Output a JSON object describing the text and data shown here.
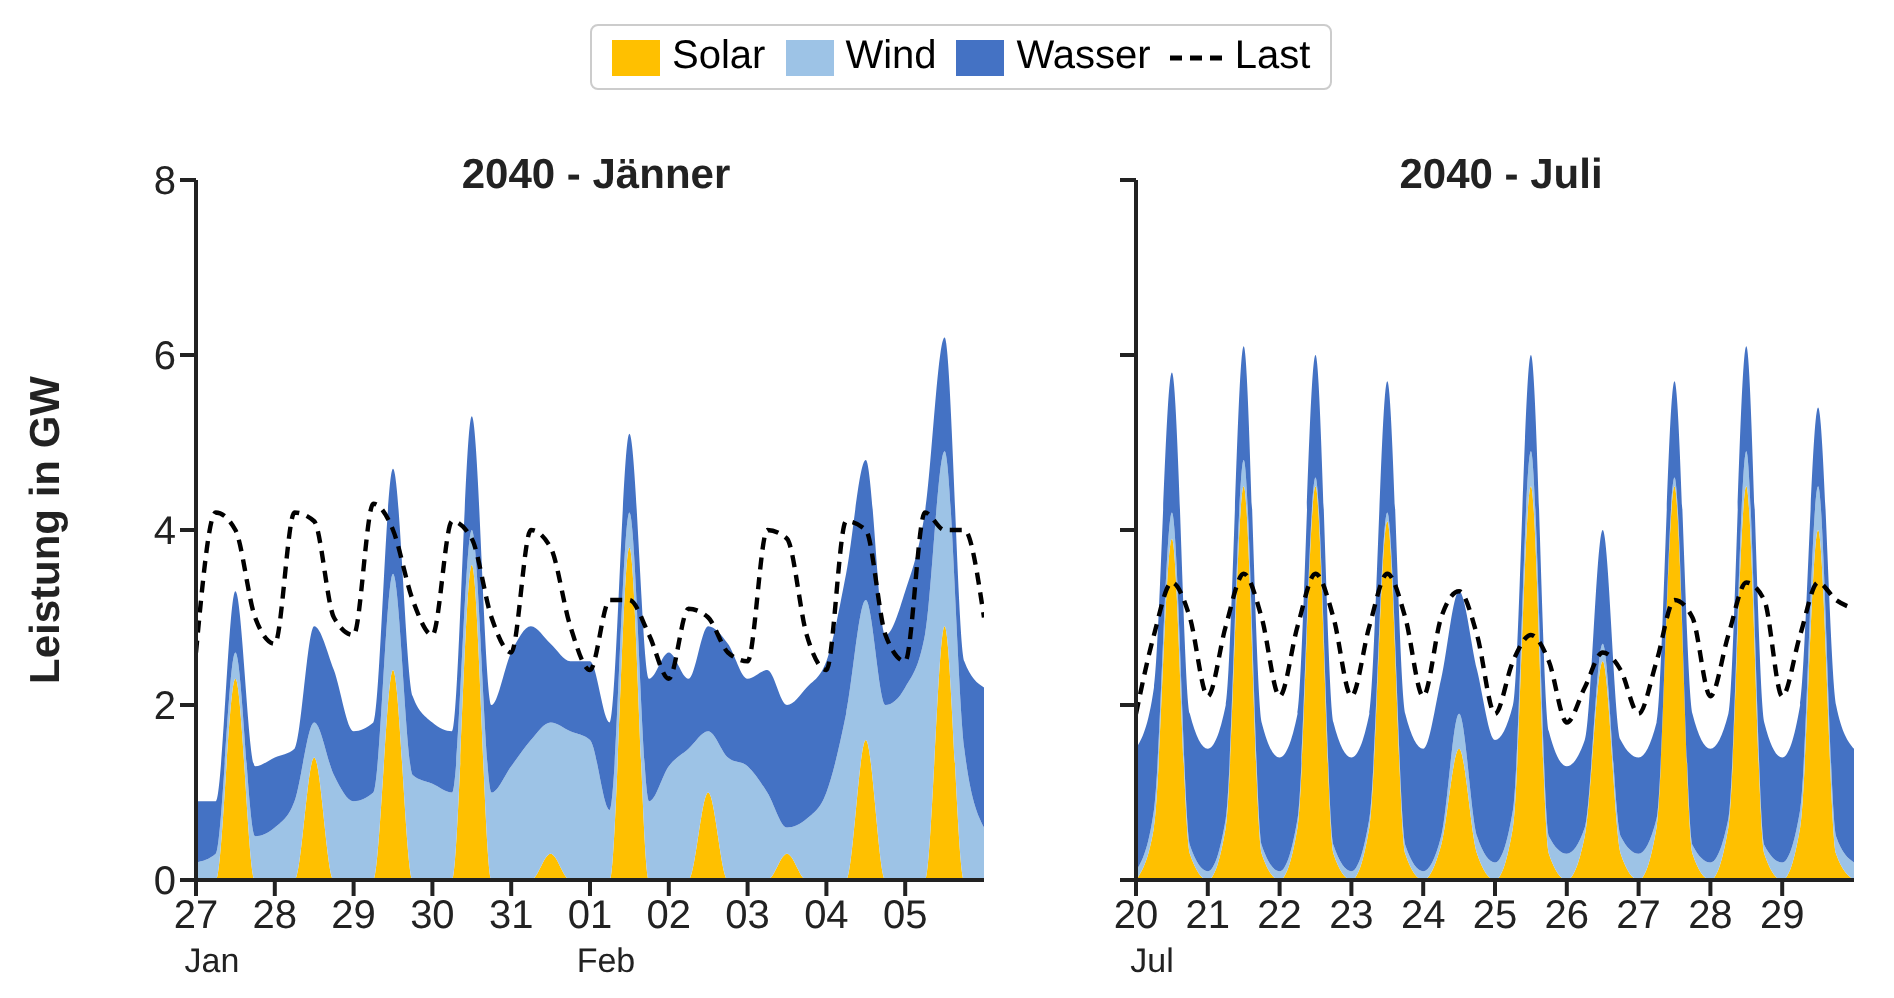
{
  "chart_data": [
    {
      "type": "area",
      "title": "2040 - Jänner",
      "ylabel": "Leistung in GW",
      "stacked": true,
      "legend": "top",
      "ylim": [
        0,
        8
      ],
      "yticks": [
        0,
        2,
        4,
        6,
        8
      ],
      "xlim": [
        "2040-01-27T00:00",
        "2040-02-06T00:00"
      ],
      "xticks": [
        {
          "value": "2040-01-27T00:00",
          "label": "27\nJan"
        },
        {
          "value": "2040-01-28T00:00",
          "label": "28"
        },
        {
          "value": "2040-01-29T00:00",
          "label": "29"
        },
        {
          "value": "2040-01-30T00:00",
          "label": "30"
        },
        {
          "value": "2040-01-31T00:00",
          "label": "31"
        },
        {
          "value": "2040-02-01T00:00",
          "label": "01\nFeb"
        },
        {
          "value": "2040-02-02T00:00",
          "label": "02"
        },
        {
          "value": "2040-02-03T00:00",
          "label": "03"
        },
        {
          "value": "2040-02-04T00:00",
          "label": "04"
        },
        {
          "value": "2040-02-05T00:00",
          "label": "05"
        }
      ],
      "x": [
        "2040-01-27T00:00",
        "2040-01-27T06:00",
        "2040-01-27T12:00",
        "2040-01-27T18:00",
        "2040-01-28T00:00",
        "2040-01-28T06:00",
        "2040-01-28T12:00",
        "2040-01-28T18:00",
        "2040-01-29T00:00",
        "2040-01-29T06:00",
        "2040-01-29T12:00",
        "2040-01-29T18:00",
        "2040-01-30T00:00",
        "2040-01-30T06:00",
        "2040-01-30T12:00",
        "2040-01-30T18:00",
        "2040-01-31T00:00",
        "2040-01-31T06:00",
        "2040-01-31T12:00",
        "2040-01-31T18:00",
        "2040-02-01T00:00",
        "2040-02-01T06:00",
        "2040-02-01T12:00",
        "2040-02-01T18:00",
        "2040-02-02T00:00",
        "2040-02-02T06:00",
        "2040-02-02T12:00",
        "2040-02-02T18:00",
        "2040-02-03T00:00",
        "2040-02-03T06:00",
        "2040-02-03T12:00",
        "2040-02-03T18:00",
        "2040-02-04T00:00",
        "2040-02-04T06:00",
        "2040-02-04T12:00",
        "2040-02-04T18:00",
        "2040-02-05T00:00",
        "2040-02-05T06:00",
        "2040-02-05T12:00",
        "2040-02-05T18:00",
        "2040-02-06T00:00"
      ],
      "series": [
        {
          "name": "Solar",
          "type": "area",
          "color": "#ffc000",
          "values": [
            0,
            0,
            2.3,
            0,
            0,
            0,
            1.4,
            0,
            0,
            0,
            2.4,
            0,
            0,
            0,
            3.6,
            0,
            0,
            0,
            0.3,
            0,
            0,
            0,
            3.8,
            0,
            0,
            0,
            1.0,
            0,
            0,
            0,
            0.3,
            0,
            0,
            0,
            1.6,
            0,
            0,
            0,
            2.9,
            0,
            0
          ]
        },
        {
          "name": "Wind",
          "type": "area",
          "color": "#9dc3e6",
          "values": [
            0.2,
            0.3,
            0.3,
            0.5,
            0.6,
            0.9,
            0.4,
            1.2,
            0.9,
            1.0,
            1.1,
            1.2,
            1.1,
            1.0,
            0.4,
            1.0,
            1.3,
            1.6,
            1.5,
            1.7,
            1.6,
            0.8,
            0.4,
            0.9,
            1.3,
            1.5,
            0.7,
            1.4,
            1.3,
            1.0,
            0.3,
            0.7,
            1.0,
            1.9,
            1.6,
            2.0,
            2.2,
            2.8,
            2.0,
            1.5,
            0.6
          ]
        },
        {
          "name": "Wasser",
          "type": "area",
          "color": "#4472c4",
          "values": [
            0.7,
            0.6,
            0.7,
            0.8,
            0.8,
            0.6,
            1.1,
            1.2,
            0.8,
            0.8,
            1.2,
            0.9,
            0.7,
            0.7,
            1.3,
            1.0,
            1.3,
            1.3,
            0.9,
            0.8,
            0.9,
            1.0,
            0.9,
            1.4,
            1.3,
            0.8,
            1.2,
            1.3,
            1.0,
            1.4,
            1.4,
            1.5,
            1.5,
            1.6,
            1.6,
            0.8,
            1.1,
            1.4,
            1.3,
            1.0,
            1.6
          ]
        },
        {
          "name": "Last",
          "type": "line",
          "color": "#000000",
          "line_style": "dashed",
          "values": [
            2.6,
            4.2,
            4.0,
            3.0,
            2.7,
            4.2,
            4.1,
            3.0,
            2.8,
            4.3,
            4.0,
            3.2,
            2.8,
            4.1,
            3.9,
            3.0,
            2.6,
            4.0,
            3.8,
            2.9,
            2.4,
            3.2,
            3.2,
            2.8,
            2.3,
            3.1,
            3.0,
            2.6,
            2.5,
            4.0,
            3.9,
            2.8,
            2.4,
            4.1,
            4.0,
            2.8,
            2.5,
            4.2,
            4.0,
            4.0,
            3.0
          ]
        }
      ]
    },
    {
      "type": "area",
      "title": "2040 - Juli",
      "stacked": true,
      "tick_labels": "x",
      "ylim": [
        0,
        8
      ],
      "yticks": [
        0,
        2,
        4,
        6,
        8
      ],
      "xlim": [
        "2040-07-20T00:00",
        "2040-07-30T00:00"
      ],
      "xticks": [
        {
          "value": "2040-07-20T00:00",
          "label": "20\nJul"
        },
        {
          "value": "2040-07-21T00:00",
          "label": "21"
        },
        {
          "value": "2040-07-22T00:00",
          "label": "22"
        },
        {
          "value": "2040-07-23T00:00",
          "label": "23"
        },
        {
          "value": "2040-07-24T00:00",
          "label": "24"
        },
        {
          "value": "2040-07-25T00:00",
          "label": "25"
        },
        {
          "value": "2040-07-26T00:00",
          "label": "26"
        },
        {
          "value": "2040-07-27T00:00",
          "label": "27"
        },
        {
          "value": "2040-07-28T00:00",
          "label": "28"
        },
        {
          "value": "2040-07-29T00:00",
          "label": "29"
        }
      ],
      "x": [
        "2040-07-20T00:00",
        "2040-07-20T06:00",
        "2040-07-20T12:00",
        "2040-07-20T18:00",
        "2040-07-21T00:00",
        "2040-07-21T06:00",
        "2040-07-21T12:00",
        "2040-07-21T18:00",
        "2040-07-22T00:00",
        "2040-07-22T06:00",
        "2040-07-22T12:00",
        "2040-07-22T18:00",
        "2040-07-23T00:00",
        "2040-07-23T06:00",
        "2040-07-23T12:00",
        "2040-07-23T18:00",
        "2040-07-24T00:00",
        "2040-07-24T06:00",
        "2040-07-24T12:00",
        "2040-07-24T18:00",
        "2040-07-25T00:00",
        "2040-07-25T06:00",
        "2040-07-25T12:00",
        "2040-07-25T18:00",
        "2040-07-26T00:00",
        "2040-07-26T06:00",
        "2040-07-26T12:00",
        "2040-07-26T18:00",
        "2040-07-27T00:00",
        "2040-07-27T06:00",
        "2040-07-27T12:00",
        "2040-07-27T18:00",
        "2040-07-28T00:00",
        "2040-07-28T06:00",
        "2040-07-28T12:00",
        "2040-07-28T18:00",
        "2040-07-29T00:00",
        "2040-07-29T06:00",
        "2040-07-29T12:00",
        "2040-07-29T18:00",
        "2040-07-30T00:00"
      ],
      "series": [
        {
          "type": "area",
          "color": "#ffc000",
          "values": [
            0,
            0.6,
            3.9,
            0.3,
            0,
            0.6,
            4.5,
            0.3,
            0,
            0.6,
            4.5,
            0.3,
            0,
            0.6,
            4.1,
            0.3,
            0,
            0.4,
            1.5,
            0.3,
            0,
            0.6,
            4.5,
            0.3,
            0,
            0.5,
            2.5,
            0.3,
            0,
            0.6,
            4.5,
            0.3,
            0,
            0.6,
            4.5,
            0.3,
            0,
            0.6,
            4.0,
            0.3,
            0
          ]
        },
        {
          "type": "area",
          "color": "#9dc3e6",
          "values": [
            0.1,
            0.2,
            0.3,
            0.1,
            0.1,
            0.1,
            0.3,
            0.1,
            0.1,
            0.1,
            0.1,
            0.1,
            0.1,
            0.1,
            0.1,
            0.1,
            0.1,
            0.1,
            0.4,
            0.2,
            0.2,
            0.2,
            0.4,
            0.2,
            0.3,
            0.1,
            0.2,
            0.2,
            0.3,
            0.1,
            0.1,
            0.1,
            0.2,
            0.1,
            0.4,
            0.1,
            0.2,
            0.2,
            0.5,
            0.2,
            0.2
          ]
        },
        {
          "type": "area",
          "color": "#4472c4",
          "values": [
            1.4,
            1.4,
            1.6,
            1.5,
            1.4,
            1.3,
            1.3,
            1.4,
            1.3,
            1.2,
            1.4,
            1.4,
            1.3,
            1.2,
            1.5,
            1.5,
            1.4,
            1.8,
            1.4,
            1.9,
            1.4,
            1.2,
            1.1,
            1.2,
            1.0,
            1.0,
            1.3,
            1.1,
            1.1,
            1.1,
            1.1,
            1.5,
            1.3,
            1.2,
            1.2,
            1.4,
            1.2,
            1.2,
            0.9,
            1.5,
            1.3
          ]
        },
        {
          "type": "line",
          "color": "#000000",
          "line_style": "dashed",
          "values": [
            1.9,
            2.8,
            3.4,
            3.0,
            2.1,
            2.9,
            3.5,
            3.0,
            2.1,
            2.9,
            3.5,
            3.0,
            2.1,
            2.9,
            3.5,
            3.0,
            2.1,
            3.0,
            3.3,
            2.8,
            1.9,
            2.5,
            2.8,
            2.5,
            1.8,
            2.2,
            2.6,
            2.4,
            1.9,
            2.5,
            3.2,
            3.0,
            2.1,
            2.8,
            3.4,
            3.2,
            2.1,
            2.8,
            3.4,
            3.2,
            3.1
          ]
        }
      ]
    }
  ]
}
